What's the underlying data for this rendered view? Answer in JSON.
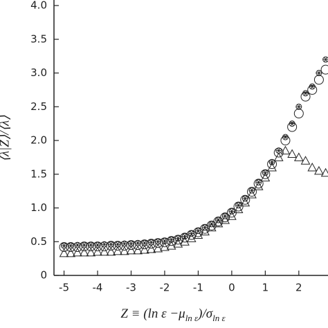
{
  "chart_data": {
    "type": "scatter",
    "x_label": [
      "Z ≡ (ln ε −μ",
      "ln ε",
      ")/σ",
      "ln ε"
    ],
    "y_label": "⟨λ|Z⟩/⟨λ⟩",
    "x": [
      -5,
      -4.8,
      -4.6,
      -4.4,
      -4.2,
      -4,
      -3.8,
      -3.6,
      -3.4,
      -3.2,
      -3,
      -2.8,
      -2.6,
      -2.4,
      -2.2,
      -2,
      -1.8,
      -1.6,
      -1.4,
      -1.2,
      -1,
      -0.8,
      -0.6,
      -0.4,
      -0.2,
      0,
      0.2,
      0.4,
      0.6,
      0.8,
      1,
      1.2,
      1.4,
      1.6,
      1.8,
      2,
      2.2,
      2.4,
      2.6,
      2.8
    ],
    "series": [
      {
        "marker": "circle",
        "color": "#222222",
        "values": [
          0.42,
          0.42,
          0.42,
          0.43,
          0.43,
          0.43,
          0.43,
          0.44,
          0.44,
          0.44,
          0.45,
          0.45,
          0.46,
          0.47,
          0.48,
          0.49,
          0.51,
          0.53,
          0.56,
          0.6,
          0.64,
          0.69,
          0.74,
          0.8,
          0.86,
          0.93,
          1.02,
          1.12,
          1.24,
          1.36,
          1.5,
          1.65,
          1.82,
          2.0,
          2.2,
          2.4,
          2.65,
          2.75,
          2.9,
          3.05
        ]
      },
      {
        "marker": "star",
        "color": "#222222",
        "values": [
          0.44,
          0.44,
          0.45,
          0.45,
          0.45,
          0.45,
          0.46,
          0.46,
          0.46,
          0.47,
          0.47,
          0.48,
          0.48,
          0.49,
          0.5,
          0.51,
          0.53,
          0.55,
          0.58,
          0.62,
          0.66,
          0.71,
          0.76,
          0.82,
          0.88,
          0.95,
          1.04,
          1.14,
          1.26,
          1.38,
          1.52,
          1.68,
          1.85,
          2.05,
          2.25,
          2.5,
          2.7,
          2.8,
          3.0,
          3.2
        ]
      },
      {
        "marker": "triangle",
        "color": "#222222",
        "values": [
          0.33,
          0.33,
          0.34,
          0.34,
          0.34,
          0.35,
          0.35,
          0.35,
          0.36,
          0.36,
          0.37,
          0.37,
          0.38,
          0.39,
          0.4,
          0.42,
          0.44,
          0.47,
          0.5,
          0.55,
          0.6,
          0.65,
          0.71,
          0.77,
          0.82,
          0.88,
          0.98,
          1.08,
          1.2,
          1.32,
          1.45,
          1.6,
          1.75,
          1.85,
          1.8,
          1.75,
          1.7,
          1.6,
          1.55,
          1.52
        ]
      }
    ],
    "xlim": [
      -5.3,
      2.87
    ],
    "xticks": [
      -5,
      -4,
      -3,
      -2,
      -1,
      0,
      1,
      2
    ],
    "ylim": [
      0,
      4
    ],
    "yticks": [
      0,
      {
        "value": 0.5,
        "label": "0.5"
      },
      {
        "value": 1,
        "label": "1.0"
      },
      1.5,
      {
        "value": 2,
        "label": "2.0"
      },
      2.5,
      {
        "value": 3,
        "label": "3.0"
      },
      3.5,
      {
        "value": 4,
        "label": "4.0"
      }
    ]
  }
}
